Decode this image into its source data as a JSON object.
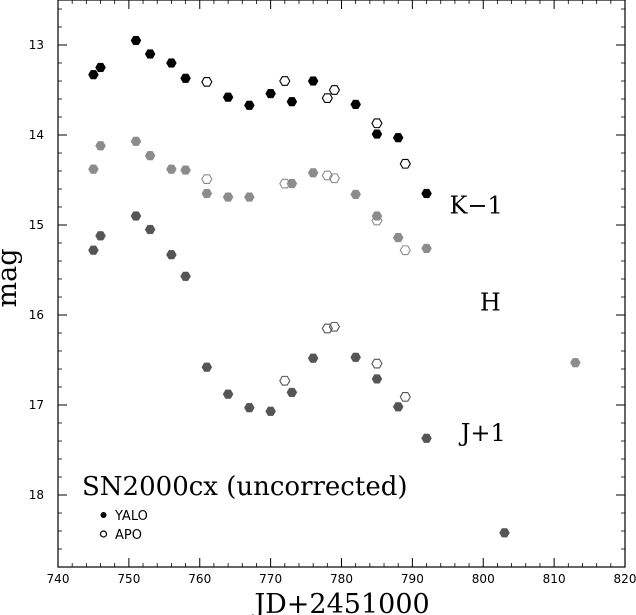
{
  "chart_data": {
    "type": "scatter",
    "title": "SN2000cx (uncorrected)",
    "xlabel": "JD+2451000",
    "ylabel": "mag",
    "xlim": [
      740,
      820
    ],
    "ylim": [
      12.5,
      18.8
    ],
    "y_inverted": true,
    "xticks": [
      740,
      750,
      760,
      770,
      780,
      790,
      800,
      810,
      820
    ],
    "yticks": [
      13,
      14,
      15,
      16,
      17,
      18
    ],
    "grid": false,
    "legend": {
      "position": "bottom-left",
      "entries": [
        {
          "label": "YALO",
          "marker": "filled"
        },
        {
          "label": "APO",
          "marker": "open"
        }
      ]
    },
    "band_labels": [
      {
        "text": "K−1",
        "x": 799,
        "y": 14.87
      },
      {
        "text": "H",
        "x": 801,
        "y": 15.95
      },
      {
        "text": "J+1",
        "x": 800,
        "y": 17.4
      }
    ],
    "series": [
      {
        "band": "K-1",
        "instrument": "YALO",
        "marker": "filled",
        "color": "#000000",
        "x": [
          745,
          746,
          751,
          753,
          756,
          758,
          764,
          767,
          770,
          773,
          776,
          782,
          785,
          788,
          792
        ],
        "y": [
          13.33,
          13.25,
          12.95,
          13.1,
          13.2,
          13.37,
          13.58,
          13.67,
          13.54,
          13.63,
          13.4,
          13.66,
          13.99,
          14.03,
          14.65
        ]
      },
      {
        "band": "K-1",
        "instrument": "APO",
        "marker": "open",
        "color": "#000000",
        "x": [
          761,
          772,
          778,
          779,
          785,
          789
        ],
        "y": [
          13.41,
          13.4,
          13.59,
          13.5,
          13.87,
          14.32
        ]
      },
      {
        "band": "H",
        "instrument": "YALO",
        "marker": "filled",
        "color": "#8c8c8c",
        "x": [
          745,
          746,
          751,
          753,
          756,
          758,
          761,
          764,
          767,
          773,
          776,
          782,
          785,
          788,
          792,
          813
        ],
        "y": [
          14.38,
          14.12,
          14.07,
          14.23,
          14.38,
          14.39,
          14.65,
          14.69,
          14.69,
          14.54,
          14.42,
          14.66,
          14.9,
          15.14,
          15.26,
          16.53
        ]
      },
      {
        "band": "H",
        "instrument": "APO",
        "marker": "open",
        "color": "#8c8c8c",
        "x": [
          761,
          772,
          778,
          779,
          785,
          789
        ],
        "y": [
          14.49,
          14.54,
          14.45,
          14.48,
          14.95,
          15.28
        ]
      },
      {
        "band": "J+1",
        "instrument": "YALO",
        "marker": "filled",
        "color": "#555555",
        "x": [
          745,
          746,
          751,
          753,
          756,
          758,
          761,
          764,
          767,
          770,
          773,
          776,
          782,
          785,
          788,
          792,
          803
        ],
        "y": [
          15.28,
          15.12,
          14.9,
          15.05,
          15.33,
          15.57,
          16.58,
          16.88,
          17.03,
          17.07,
          16.86,
          16.48,
          16.47,
          16.71,
          17.02,
          17.37,
          18.42
        ]
      },
      {
        "band": "J+1",
        "instrument": "APO",
        "marker": "open",
        "color": "#555555",
        "x": [
          772,
          778,
          779,
          785,
          789
        ],
        "y": [
          16.73,
          16.15,
          16.13,
          16.54,
          16.91
        ]
      }
    ]
  }
}
